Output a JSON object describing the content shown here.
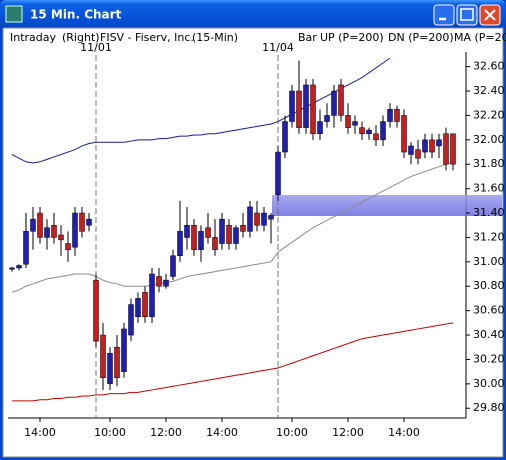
{
  "window": {
    "title": "15 Min. Chart"
  },
  "chart_data": {
    "type": "candlestick",
    "header": [
      "Intraday",
      "(Right)",
      "FISV - Fiserv, Inc.",
      "(15-Min)",
      "Bar"
    ],
    "categories": [
      null,
      null,
      null,
      null,
      "14:00",
      null,
      null,
      null,
      null,
      null,
      null,
      null,
      null,
      null,
      "10:00",
      null,
      null,
      null,
      null,
      null,
      null,
      null,
      "12:00",
      null,
      null,
      null,
      null,
      null,
      null,
      null,
      "14:00",
      null,
      null,
      null,
      null,
      null,
      null,
      null,
      null,
      null,
      "10:00",
      null,
      null,
      null,
      null,
      null,
      null,
      null,
      "12:00",
      null,
      null,
      null,
      null,
      null,
      null,
      null,
      "14:00",
      null,
      null,
      null,
      null,
      null,
      null,
      null
    ],
    "session_labels": [
      null,
      null,
      null,
      null,
      null,
      null,
      null,
      null,
      null,
      null,
      null,
      null,
      "11/01",
      null,
      null,
      null,
      null,
      null,
      null,
      null,
      null,
      null,
      null,
      null,
      null,
      null,
      null,
      null,
      null,
      null,
      null,
      null,
      null,
      null,
      null,
      null,
      null,
      null,
      "11/04",
      null,
      null,
      null,
      null,
      null,
      null,
      null,
      null,
      null,
      null,
      null,
      null,
      null,
      null,
      null,
      null,
      null,
      null,
      null,
      null,
      null,
      null,
      null,
      null,
      null
    ],
    "open": [
      30.94,
      30.95,
      30.98,
      31.25,
      31.4,
      31.2,
      31.3,
      31.22,
      31.15,
      31.12,
      31.4,
      31.3,
      30.85,
      30.4,
      30.0,
      30.3,
      30.1,
      30.4,
      30.55,
      30.75,
      30.55,
      30.88,
      30.8,
      30.88,
      31.05,
      31.2,
      31.3,
      31.1,
      31.28,
      31.2,
      31.15,
      31.3,
      31.15,
      31.3,
      31.25,
      31.4,
      31.3,
      31.35,
      31.55,
      31.9,
      32.15,
      32.4,
      32.1,
      32.45,
      32.05,
      32.15,
      32.2,
      32.45,
      32.2,
      32.12,
      32.1,
      32.05,
      32.05,
      32.0,
      32.15,
      32.25,
      32.2,
      31.88,
      31.92,
      31.9,
      32.0,
      31.95,
      32.05,
      32.05
    ],
    "high": [
      30.96,
      30.98,
      31.4,
      31.45,
      31.45,
      31.35,
      31.4,
      31.3,
      31.25,
      31.45,
      31.45,
      31.4,
      30.9,
      30.5,
      30.3,
      30.4,
      30.5,
      30.7,
      30.75,
      30.8,
      30.95,
      30.95,
      30.9,
      31.1,
      31.5,
      31.45,
      31.35,
      31.3,
      31.4,
      31.35,
      31.4,
      31.35,
      31.3,
      31.4,
      31.5,
      31.5,
      31.45,
      31.4,
      31.95,
      32.2,
      32.45,
      32.65,
      32.5,
      32.5,
      32.25,
      32.3,
      32.45,
      32.5,
      32.3,
      32.2,
      32.15,
      32.1,
      32.12,
      32.2,
      32.3,
      32.28,
      32.25,
      31.98,
      32.0,
      32.05,
      32.05,
      32.05,
      32.1,
      32.05
    ],
    "low": [
      30.92,
      30.93,
      30.95,
      31.1,
      31.15,
      31.1,
      31.15,
      31.05,
      31.0,
      31.05,
      31.2,
      31.25,
      30.3,
      29.95,
      29.95,
      29.98,
      30.05,
      30.35,
      30.5,
      30.5,
      30.5,
      30.75,
      30.78,
      30.85,
      31.0,
      31.1,
      31.05,
      31.0,
      31.15,
      31.05,
      31.1,
      31.1,
      31.1,
      31.2,
      31.2,
      31.25,
      31.25,
      31.15,
      31.5,
      31.85,
      32.1,
      32.05,
      32.05,
      32.0,
      32.0,
      32.1,
      32.1,
      32.15,
      32.05,
      32.05,
      32.0,
      32.0,
      31.95,
      31.95,
      32.1,
      32.1,
      31.85,
      31.8,
      31.8,
      31.85,
      31.85,
      31.85,
      31.75,
      31.75
    ],
    "close": [
      30.95,
      30.97,
      31.25,
      31.35,
      31.2,
      31.28,
      31.2,
      31.18,
      31.1,
      31.4,
      31.25,
      31.35,
      30.35,
      30.05,
      30.25,
      30.05,
      30.45,
      30.65,
      30.7,
      30.55,
      30.9,
      30.8,
      30.85,
      31.05,
      31.25,
      31.3,
      31.1,
      31.25,
      31.2,
      31.1,
      31.35,
      31.15,
      31.28,
      31.25,
      31.45,
      31.3,
      31.4,
      31.38,
      31.9,
      32.15,
      32.4,
      32.1,
      32.45,
      32.05,
      32.15,
      32.2,
      32.4,
      32.2,
      32.1,
      32.15,
      32.05,
      32.08,
      32.0,
      32.15,
      32.25,
      32.15,
      31.9,
      31.95,
      31.85,
      32.0,
      31.9,
      32.0,
      31.8,
      31.8
    ],
    "up_color": "#1f1fb4",
    "down_color": "#c81e1e",
    "series": [
      {
        "name": "UP (P=200)",
        "color": "#1a1a9a",
        "label_color": "#0000c0",
        "values": [
          31.88,
          31.85,
          31.82,
          31.81,
          31.82,
          31.84,
          31.86,
          31.88,
          31.9,
          31.92,
          31.95,
          31.97,
          31.98,
          31.98,
          31.98,
          31.98,
          31.98,
          31.99,
          32.0,
          32.0,
          32.0,
          32.01,
          32.01,
          32.02,
          32.03,
          32.03,
          32.04,
          32.04,
          32.05,
          32.05,
          32.06,
          32.07,
          32.08,
          32.09,
          32.1,
          32.11,
          32.12,
          32.13,
          32.15,
          32.18,
          32.21,
          32.24,
          32.27,
          32.3,
          32.33,
          32.36,
          32.39,
          32.42,
          32.45,
          32.48,
          32.51,
          32.55,
          32.59,
          32.63,
          32.67,
          null,
          null,
          null,
          null,
          null,
          null,
          null,
          null,
          null
        ]
      },
      {
        "name": "DN (P=200)",
        "color": "#8c8c8c",
        "label_color": "#008000",
        "values": [
          30.75,
          30.77,
          30.8,
          30.82,
          30.84,
          30.86,
          30.87,
          30.88,
          30.89,
          30.9,
          30.9,
          30.9,
          30.88,
          30.85,
          30.83,
          30.82,
          30.8,
          30.8,
          30.8,
          30.8,
          30.81,
          30.82,
          30.83,
          30.84,
          30.86,
          30.88,
          30.89,
          30.9,
          30.91,
          30.92,
          30.93,
          30.94,
          30.95,
          30.96,
          30.97,
          30.98,
          30.99,
          31.0,
          31.08,
          31.12,
          31.16,
          31.2,
          31.24,
          31.28,
          31.31,
          31.34,
          31.37,
          31.4,
          31.43,
          31.46,
          31.49,
          31.52,
          31.55,
          31.58,
          31.61,
          31.64,
          31.67,
          31.7,
          31.72,
          31.74,
          31.76,
          31.78,
          31.8,
          31.82
        ]
      },
      {
        "name": "MA (P=20",
        "color": "#c00000",
        "label_color": "#c00000",
        "values": [
          29.86,
          29.86,
          29.86,
          29.86,
          29.87,
          29.87,
          29.88,
          29.88,
          29.89,
          29.89,
          29.9,
          29.9,
          29.91,
          29.91,
          29.92,
          29.92,
          29.92,
          29.93,
          29.93,
          29.94,
          29.95,
          29.96,
          29.97,
          29.98,
          29.99,
          30.0,
          30.01,
          30.02,
          30.03,
          30.04,
          30.05,
          30.06,
          30.07,
          30.08,
          30.09,
          30.1,
          30.11,
          30.12,
          30.13,
          30.15,
          30.17,
          30.19,
          30.21,
          30.23,
          30.25,
          30.27,
          30.29,
          30.31,
          30.33,
          30.35,
          30.37,
          30.38,
          30.39,
          30.4,
          30.41,
          30.42,
          30.43,
          30.44,
          30.45,
          30.46,
          30.47,
          30.48,
          30.49,
          30.5
        ]
      }
    ],
    "ylim": [
      29.72,
      32.72
    ],
    "yticks": [
      {
        "value": 29.8,
        "label": "29.80"
      },
      {
        "value": 30,
        "label": "30.00"
      },
      {
        "value": 30.2,
        "label": "30.20"
      },
      {
        "value": 30.4,
        "label": "30.40"
      },
      {
        "value": 30.6,
        "label": "30.60"
      },
      {
        "value": 30.8,
        "label": "30.80"
      },
      {
        "value": 31,
        "label": "31.00"
      },
      {
        "value": 31.2,
        "label": "31.20"
      },
      {
        "value": 31.4,
        "label": "31.40"
      },
      {
        "value": 31.6,
        "label": "31.60"
      },
      {
        "value": 31.8,
        "label": "31.80"
      },
      {
        "value": 32,
        "label": "32.00"
      },
      {
        "value": 32.2,
        "label": "32.20"
      },
      {
        "value": 32.4,
        "label": "32.40"
      },
      {
        "value": 32.6,
        "label": "32.60"
      }
    ]
  }
}
